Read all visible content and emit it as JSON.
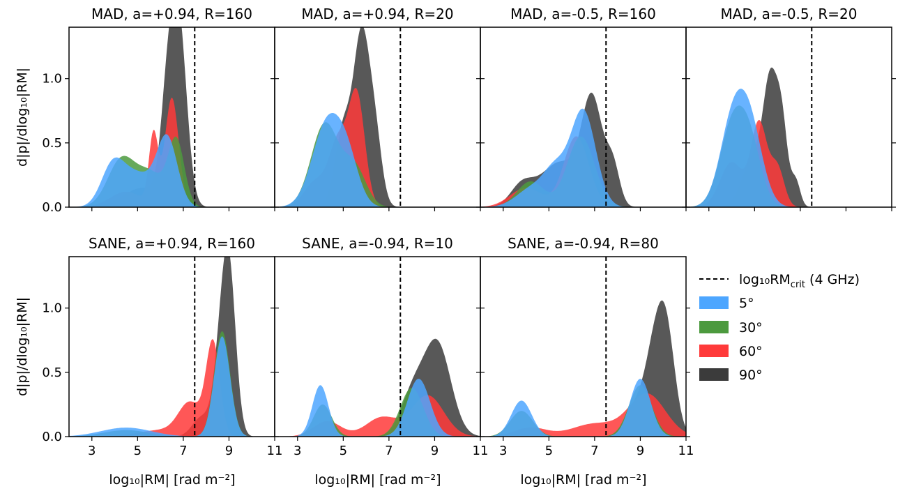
{
  "figure": {
    "ylabel": "d|p|/dlog₁₀|RM|",
    "xlabel": "log₁₀|RM| [rad m⁻²]",
    "legend_title_dashed": "log₁₀RM",
    "legend_title_dashed_sub": "crit",
    "legend_title_dashed_tail": " (4 GHz)",
    "colors": {
      "5": "#4da6ff",
      "30": "#4c9a3e",
      "60": "#ff3a3a",
      "90": "#3b3b3b"
    }
  },
  "chart_data": {
    "type": "area",
    "xlim": [
      2,
      11
    ],
    "ylim": [
      0,
      1.4
    ],
    "xticks": [
      "3",
      "5",
      "7",
      "9",
      "11"
    ],
    "yticks": [
      "0.0",
      "0.5",
      "1.0"
    ],
    "rm_crit": 7.5,
    "legend": [
      "5°",
      "30°",
      "60°",
      "90°"
    ],
    "panels": [
      {
        "title": "MAD, a=+0.94, R=160",
        "series": [
          {
            "name": "90°",
            "peaks": [
              [
                6.8,
                1.4,
                0.35
              ],
              [
                6.3,
                0.7,
                0.3
              ],
              [
                5.2,
                0.15,
                0.8
              ]
            ]
          },
          {
            "name": "60°",
            "peaks": [
              [
                6.5,
                0.85,
                0.3
              ],
              [
                5.7,
                0.55,
                0.2
              ],
              [
                4.5,
                0.12,
                0.7
              ]
            ]
          },
          {
            "name": "30°",
            "peaks": [
              [
                6.7,
                0.5,
                0.35
              ],
              [
                4.3,
                0.37,
                0.6
              ],
              [
                5.6,
                0.25,
                0.6
              ]
            ]
          },
          {
            "name": "5°",
            "peaks": [
              [
                6.3,
                0.52,
                0.45
              ],
              [
                3.9,
                0.3,
                0.5
              ],
              [
                5.0,
                0.25,
                0.7
              ]
            ]
          }
        ]
      },
      {
        "title": "MAD, a=+0.94, R=20",
        "series": [
          {
            "name": "90°",
            "peaks": [
              [
                5.8,
                1.3,
                0.35
              ],
              [
                5.0,
                0.6,
                0.35
              ],
              [
                6.4,
                0.5,
                0.3
              ]
            ]
          },
          {
            "name": "60°",
            "peaks": [
              [
                5.6,
                0.85,
                0.35
              ],
              [
                4.8,
                0.5,
                0.4
              ],
              [
                3.8,
                0.2,
                0.5
              ]
            ]
          },
          {
            "name": "30°",
            "peaks": [
              [
                4.2,
                0.65,
                0.6
              ],
              [
                5.5,
                0.3,
                0.5
              ]
            ]
          },
          {
            "name": "5°",
            "peaks": [
              [
                4.3,
                0.65,
                0.65
              ],
              [
                5.2,
                0.3,
                0.5
              ]
            ]
          }
        ]
      },
      {
        "title": "MAD, a=-0.5, R=160",
        "series": [
          {
            "name": "90°",
            "peaks": [
              [
                6.9,
                0.78,
                0.45
              ],
              [
                5.5,
                0.35,
                0.9
              ],
              [
                3.8,
                0.15,
                0.5
              ],
              [
                7.8,
                0.3,
                0.3
              ]
            ]
          },
          {
            "name": "60°",
            "peaks": [
              [
                6.2,
                0.55,
                0.55
              ],
              [
                4.0,
                0.15,
                0.7
              ]
            ]
          },
          {
            "name": "30°",
            "peaks": [
              [
                6.4,
                0.55,
                0.6
              ],
              [
                4.2,
                0.2,
                0.6
              ]
            ]
          },
          {
            "name": "5°",
            "peaks": [
              [
                6.5,
                0.75,
                0.55
              ],
              [
                4.3,
                0.15,
                0.7
              ],
              [
                5.3,
                0.25,
                0.5
              ]
            ]
          }
        ]
      },
      {
        "title": "MAD, a=-0.5, R=20",
        "series": [
          {
            "name": "90°",
            "peaks": [
              [
                5.7,
                0.85,
                0.3
              ],
              [
                6.2,
                0.6,
                0.25
              ],
              [
                5.0,
                0.4,
                0.5
              ],
              [
                6.8,
                0.2,
                0.2
              ]
            ]
          },
          {
            "name": "60°",
            "peaks": [
              [
                5.2,
                0.65,
                0.35
              ],
              [
                4.0,
                0.35,
                0.5
              ],
              [
                6.0,
                0.3,
                0.3
              ]
            ]
          },
          {
            "name": "30°",
            "peaks": [
              [
                4.0,
                0.6,
                0.55
              ],
              [
                4.8,
                0.45,
                0.5
              ]
            ]
          },
          {
            "name": "5°",
            "peaks": [
              [
                4.0,
                0.6,
                0.55
              ],
              [
                4.8,
                0.6,
                0.55
              ]
            ]
          }
        ]
      },
      {
        "title": "SANE, a=+0.94, R=160",
        "series": [
          {
            "name": "90°",
            "peaks": [
              [
                9.0,
                1.25,
                0.3
              ],
              [
                8.6,
                0.5,
                0.3
              ],
              [
                7.8,
                0.15,
                0.4
              ]
            ]
          },
          {
            "name": "60°",
            "peaks": [
              [
                8.3,
                0.72,
                0.3
              ],
              [
                7.3,
                0.25,
                0.5
              ],
              [
                6.0,
                0.05,
                1.0
              ]
            ]
          },
          {
            "name": "30°",
            "peaks": [
              [
                8.7,
                0.82,
                0.35
              ],
              [
                4.5,
                0.05,
                1.0
              ]
            ]
          },
          {
            "name": "5°",
            "peaks": [
              [
                8.7,
                0.78,
                0.35
              ],
              [
                4.5,
                0.07,
                1.1
              ]
            ]
          }
        ]
      },
      {
        "title": "SANE, a=-0.94, R=10",
        "series": [
          {
            "name": "90°",
            "peaks": [
              [
                9.1,
                0.73,
                0.6
              ],
              [
                8.0,
                0.3,
                0.5
              ]
            ]
          },
          {
            "name": "60°",
            "peaks": [
              [
                8.7,
                0.32,
                0.7
              ],
              [
                6.7,
                0.15,
                0.7
              ],
              [
                4.3,
                0.12,
                0.6
              ]
            ]
          },
          {
            "name": "30°",
            "peaks": [
              [
                8.0,
                0.38,
                0.5
              ],
              [
                4.1,
                0.25,
                0.4
              ]
            ]
          },
          {
            "name": "5°",
            "peaks": [
              [
                8.3,
                0.45,
                0.5
              ],
              [
                4.0,
                0.4,
                0.35
              ]
            ]
          }
        ]
      },
      {
        "title": "SANE, a=-0.94, R=80",
        "series": [
          {
            "name": "90°",
            "peaks": [
              [
                10.1,
                0.85,
                0.4
              ],
              [
                9.5,
                0.5,
                0.4
              ],
              [
                8.7,
                0.2,
                0.4
              ]
            ]
          },
          {
            "name": "60°",
            "peaks": [
              [
                9.3,
                0.33,
                0.8
              ],
              [
                7.0,
                0.1,
                1.0
              ],
              [
                4.2,
                0.07,
                0.7
              ]
            ]
          },
          {
            "name": "30°",
            "peaks": [
              [
                9.0,
                0.4,
                0.5
              ],
              [
                3.8,
                0.2,
                0.5
              ]
            ]
          },
          {
            "name": "5°",
            "peaks": [
              [
                9.0,
                0.45,
                0.45
              ],
              [
                3.8,
                0.28,
                0.45
              ]
            ]
          }
        ]
      }
    ]
  }
}
